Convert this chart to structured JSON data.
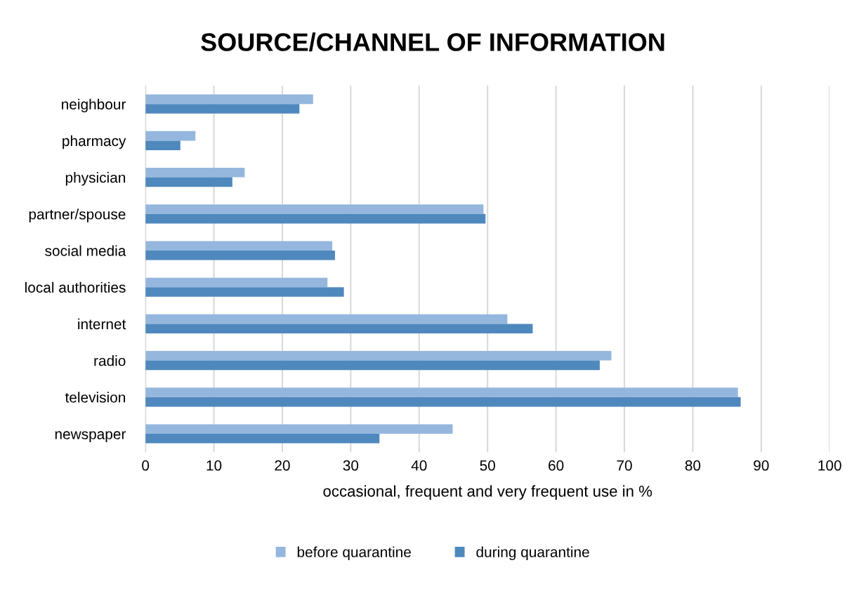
{
  "chart_data": {
    "type": "bar",
    "orientation": "horizontal",
    "title": "SOURCE/CHANNEL OF INFORMATION",
    "xlabel": "occasional, frequent and very frequent use in %",
    "categories": [
      "neighbour",
      "pharmacy",
      "physician",
      "partner/spouse",
      "social media",
      "local authorities",
      "internet",
      "radio",
      "television",
      "newspaper"
    ],
    "series": [
      {
        "name": "before quarantine",
        "color": "#95b7de",
        "values": [
          24.5,
          7.3,
          14.5,
          49.4,
          27.3,
          26.6,
          52.9,
          68.1,
          86.6,
          44.9
        ]
      },
      {
        "name": "during quarantine",
        "color": "#4f88bd",
        "values": [
          22.5,
          5.1,
          12.7,
          49.7,
          27.7,
          29.0,
          56.6,
          66.4,
          87.0,
          34.2
        ]
      }
    ],
    "xlim": [
      0,
      100
    ],
    "xticks": [
      0,
      10,
      20,
      30,
      40,
      50,
      60,
      70,
      80,
      90,
      100
    ],
    "grid": "x",
    "legend": "bottom"
  }
}
